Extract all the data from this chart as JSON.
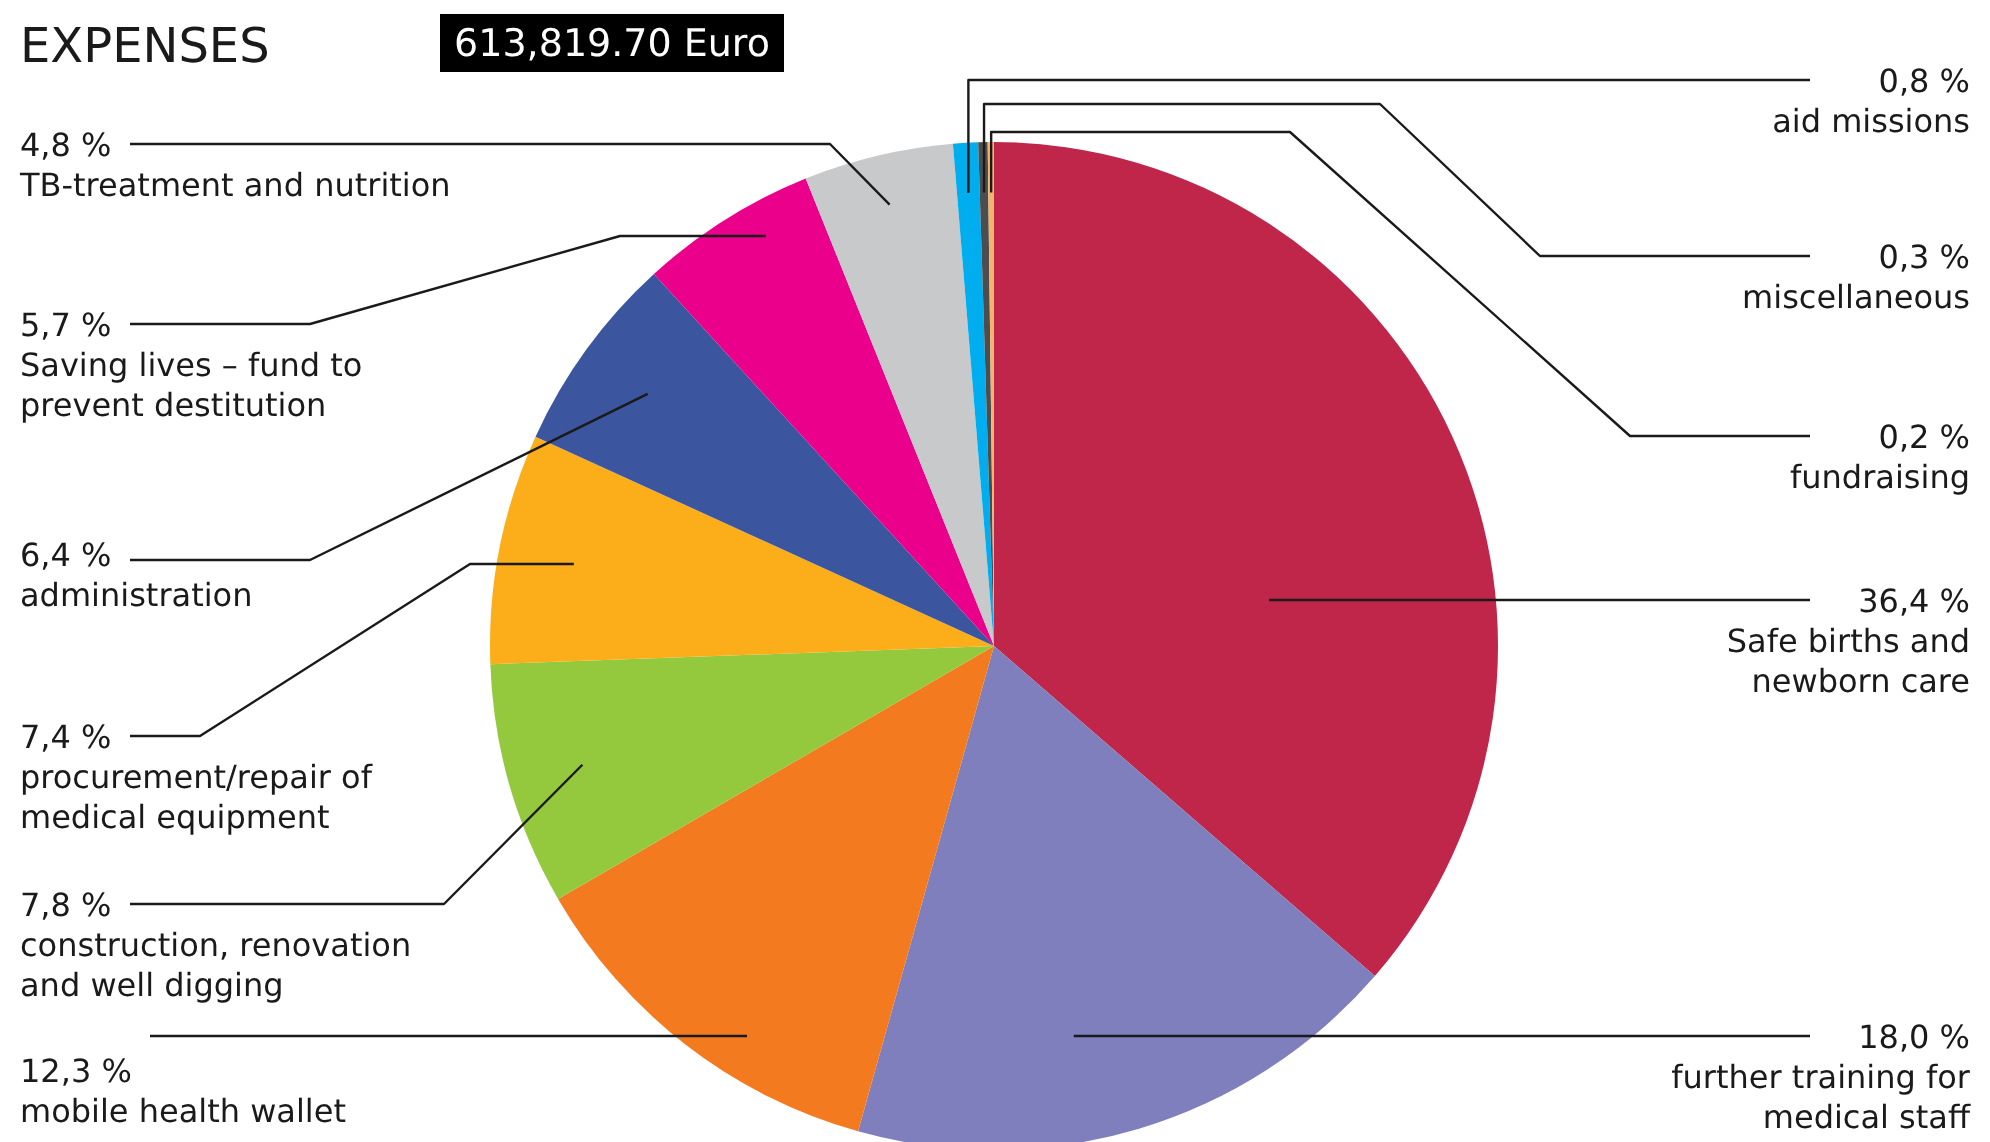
{
  "chart_data": {
    "type": "pie",
    "title": "EXPENSES",
    "subtitle": "613,819.70 Euro",
    "categories": [
      "Safe births and newborn care",
      "further training for medical staff",
      "mobile health wallet",
      "construction, renovation and well digging",
      "procurement/repair of medical equipment",
      "administration",
      "Saving lives – fund to prevent destitution",
      "TB-treatment and nutrition",
      "aid missions",
      "miscellaneous",
      "fundraising"
    ],
    "values": [
      36.4,
      18.0,
      12.3,
      7.8,
      7.4,
      6.4,
      5.7,
      4.8,
      0.8,
      0.3,
      0.2
    ],
    "value_labels": [
      "36,4 %",
      "18,0 %",
      "12,3 %",
      "7,8 %",
      "7,4 %",
      "6,4 %",
      "5,7 %",
      "4,8 %",
      "0,8 %",
      "0,3 %",
      "0,2 %"
    ],
    "colors": [
      "#c0254a",
      "#7f7fbd",
      "#f47a20",
      "#95c93d",
      "#fcae1a",
      "#3b559f",
      "#eb008b",
      "#c8c9cb",
      "#00aeef",
      "#4d4d4f",
      "#f4b56a"
    ]
  }
}
